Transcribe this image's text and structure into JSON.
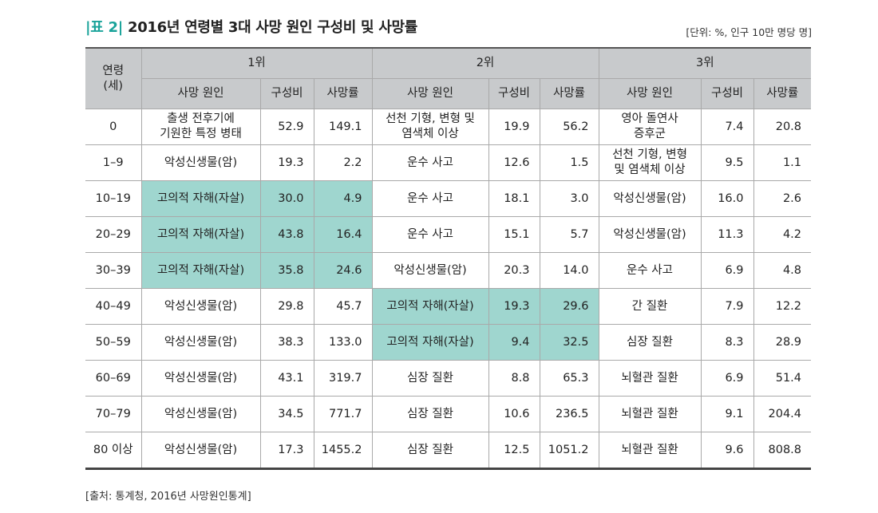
{
  "title": {
    "tag": "|표 2|",
    "text": "2016년 연령별 3대 사망 원인 구성비 및 사망률"
  },
  "unit": "[단위: %, 인구 10만 명당 명]",
  "header": {
    "age": "연령\n(세)",
    "rank1": "1위",
    "rank2": "2위",
    "rank3": "3위",
    "cause": "사망 원인",
    "share": "구성비",
    "rate": "사망률"
  },
  "rows": [
    {
      "age": "0",
      "c1": "출생 전후기에\n기원한 특정 병태",
      "s1": "52.9",
      "r1": "149.1",
      "c2": "선천 기형, 변형 및\n염색체 이상",
      "s2": "19.9",
      "r2": "56.2",
      "c3": "영아 돌연사\n증후군",
      "s3": "7.4",
      "r3": "20.8"
    },
    {
      "age": "1–9",
      "c1": "악성신생물(암)",
      "s1": "19.3",
      "r1": "2.2",
      "c2": "운수 사고",
      "s2": "12.6",
      "r2": "1.5",
      "c3": "선천 기형, 변형\n및 염색체 이상",
      "s3": "9.5",
      "r3": "1.1"
    },
    {
      "age": "10–19",
      "c1": "고의적 자해(자살)",
      "s1": "30.0",
      "r1": "4.9",
      "c2": "운수 사고",
      "s2": "18.1",
      "r2": "3.0",
      "c3": "악성신생물(암)",
      "s3": "16.0",
      "r3": "2.6"
    },
    {
      "age": "20–29",
      "c1": "고의적 자해(자살)",
      "s1": "43.8",
      "r1": "16.4",
      "c2": "운수 사고",
      "s2": "15.1",
      "r2": "5.7",
      "c3": "악성신생물(암)",
      "s3": "11.3",
      "r3": "4.2"
    },
    {
      "age": "30–39",
      "c1": "고의적 자해(자살)",
      "s1": "35.8",
      "r1": "24.6",
      "c2": "악성신생물(암)",
      "s2": "20.3",
      "r2": "14.0",
      "c3": "운수 사고",
      "s3": "6.9",
      "r3": "4.8"
    },
    {
      "age": "40–49",
      "c1": "악성신생물(암)",
      "s1": "29.8",
      "r1": "45.7",
      "c2": "고의적 자해(자살)",
      "s2": "19.3",
      "r2": "29.6",
      "c3": "간 질환",
      "s3": "7.9",
      "r3": "12.2"
    },
    {
      "age": "50–59",
      "c1": "악성신생물(암)",
      "s1": "38.3",
      "r1": "133.0",
      "c2": "고의적 자해(자살)",
      "s2": "9.4",
      "r2": "32.5",
      "c3": "심장 질환",
      "s3": "8.3",
      "r3": "28.9"
    },
    {
      "age": "60–69",
      "c1": "악성신생물(암)",
      "s1": "43.1",
      "r1": "319.7",
      "c2": "심장 질환",
      "s2": "8.8",
      "r2": "65.3",
      "c3": "뇌혈관 질환",
      "s3": "6.9",
      "r3": "51.4"
    },
    {
      "age": "70–79",
      "c1": "악성신생물(암)",
      "s1": "34.5",
      "r1": "771.7",
      "c2": "심장 질환",
      "s2": "10.6",
      "r2": "236.5",
      "c3": "뇌혈관 질환",
      "s3": "9.1",
      "r3": "204.4"
    },
    {
      "age": "80 이상",
      "c1": "악성신생물(암)",
      "s1": "17.3",
      "r1": "1455.2",
      "c2": "심장 질환",
      "s2": "12.5",
      "r2": "1051.2",
      "c3": "뇌혈관 질환",
      "s3": "9.6",
      "r3": "808.8"
    }
  ],
  "highlight_color": "#9fd6cf",
  "source": "[출처: 통계청, 2016년 사망원인통계]"
}
